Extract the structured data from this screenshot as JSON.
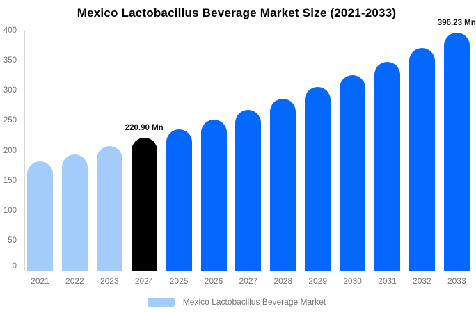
{
  "chart_data": {
    "type": "bar",
    "title": "Mexico Lactobacillus Beverage Market Size (2021-2033)",
    "xlabel": "",
    "ylabel": "",
    "categories": [
      "2021",
      "2022",
      "2023",
      "2024",
      "2025",
      "2026",
      "2027",
      "2028",
      "2029",
      "2030",
      "2031",
      "2032",
      "2033"
    ],
    "values": [
      181.8,
      194.0,
      207.0,
      220.9,
      235.7,
      251.5,
      268.4,
      286.4,
      305.6,
      326.1,
      348.0,
      371.3,
      396.23
    ],
    "unit": "Mn",
    "bar_colors": [
      "#A3CCFA",
      "#A3CCFA",
      "#A3CCFA",
      "#000000",
      "#0568FC",
      "#0568FC",
      "#0568FC",
      "#0568FC",
      "#0568FC",
      "#0568FC",
      "#0568FC",
      "#0568FC",
      "#0568FC"
    ],
    "bar_labels": [
      "",
      "",
      "",
      "220.90 Mn",
      "",
      "",
      "",
      "",
      "",
      "",
      "",
      "",
      "396.23 Mn"
    ],
    "ylim": [
      0,
      400
    ],
    "yticks": [
      0,
      50,
      100,
      150,
      200,
      250,
      300,
      350,
      400
    ],
    "grid": false,
    "legend": {
      "label": "Mexico Lactobacillus Beverage Market",
      "swatch_color": "#A3CCFA",
      "position": "bottom"
    }
  },
  "colors": {
    "history_bar": "#A3CCFA",
    "highlight_bar": "#000000",
    "forecast_bar": "#0568FC",
    "axis_text": "#757575",
    "axis_line": "#D6D6D6",
    "title_text": "#000000"
  }
}
